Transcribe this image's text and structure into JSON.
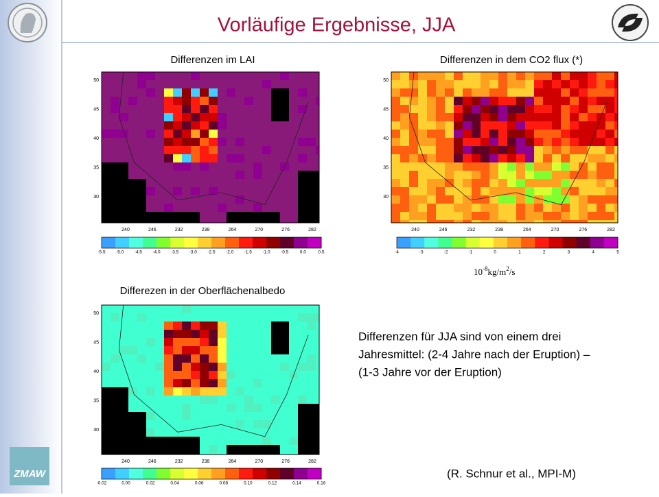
{
  "header": {
    "title": "Vorläufige Ergebnisse, JJA"
  },
  "logos": {
    "zmaw": "ZMAW"
  },
  "panels": [
    {
      "title": "Differenzen im LAI",
      "lat_ticks": [
        "50",
        "45",
        "40",
        "35",
        "30"
      ],
      "lon_ticks": [
        "240",
        "246",
        "232",
        "238",
        "264",
        "270",
        "276",
        "282"
      ],
      "colorbar_labels": [
        "-5.5",
        "-5.0",
        "-4.5",
        "-4.0",
        "-3.5",
        "-3.0",
        "-2.5",
        "-2.0",
        "-1.5",
        "-1.0",
        "-0.5",
        "0.0",
        "0.5"
      ]
    },
    {
      "title": "Differenzen in  dem  CO2 flux (*)",
      "lat_ticks": [
        "50",
        "45",
        "40",
        "35",
        "30"
      ],
      "lon_ticks": [
        "240",
        "246",
        "232",
        "238",
        "264",
        "270",
        "276",
        "282"
      ],
      "colorbar_labels": [
        "-4",
        "-3",
        "-2",
        "-1",
        "0",
        "1",
        "2",
        "3",
        "4",
        "5"
      ]
    },
    {
      "title": "Differezen in der Oberflächenalbedo",
      "lat_ticks": [
        "50",
        "45",
        "40",
        "35",
        "30"
      ],
      "lon_ticks": [
        "240",
        "246",
        "232",
        "238",
        "264",
        "270",
        "276",
        "282"
      ],
      "colorbar_labels": [
        "-0.02",
        "0.00",
        "0.02",
        "0.04",
        "0.06",
        "0.08",
        "0.10",
        "0.12",
        "0.14",
        "0.16"
      ]
    }
  ],
  "unit": {
    "base": "10",
    "exponent": "-8",
    "unit": "kg/m",
    "unit_exponent": "2",
    "suffix": "/s"
  },
  "note": {
    "lines": [
      "Differenzen für JJA sind von einem  drei",
      "Jahresmittel: (2-4 Jahre nach der Eruption) –",
      "(1-3 Jahre vor der Eruption)"
    ]
  },
  "citation": "(R. Schnur et al., MPI-M)"
}
